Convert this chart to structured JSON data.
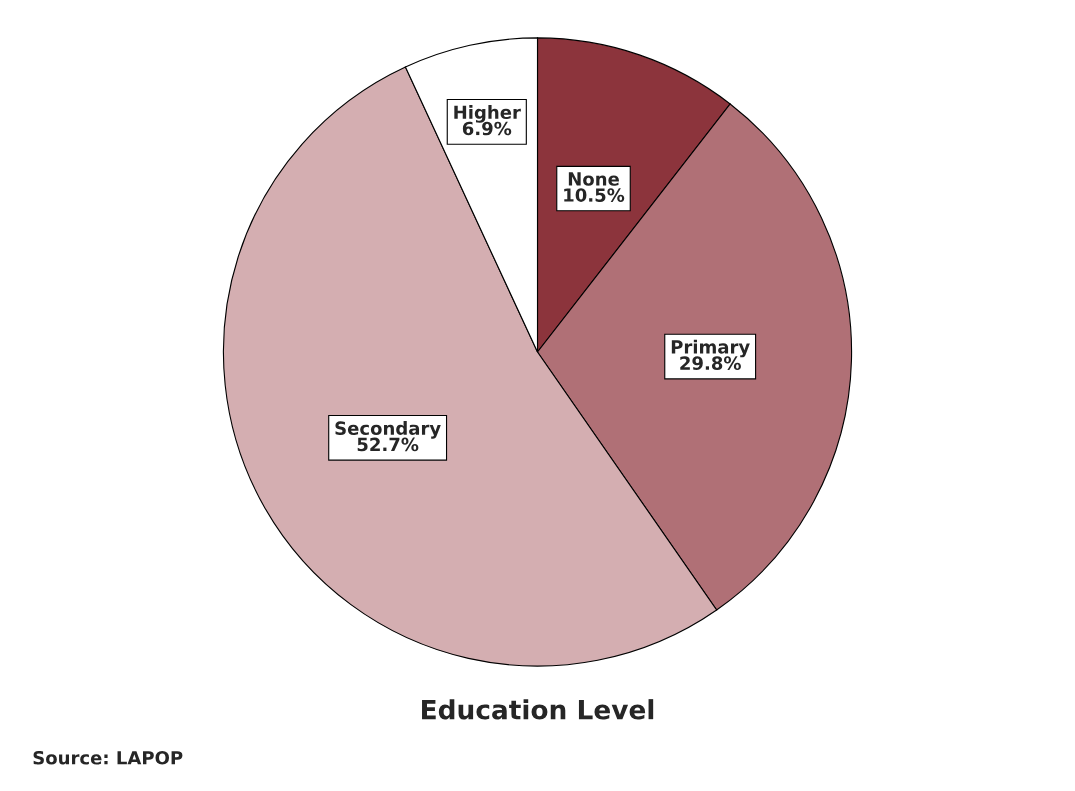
{
  "chart_data": {
    "type": "pie",
    "title": "Education Level",
    "categories": [
      "None",
      "Primary",
      "Secondary",
      "Higher"
    ],
    "values": [
      10.5,
      29.8,
      52.7,
      6.9
    ],
    "colors": [
      "#8c343c",
      "#b07076",
      "#d4aeb1",
      "#ffffff"
    ],
    "value_labels": [
      "10.5%",
      "29.8%",
      "52.7%",
      "6.9%"
    ],
    "annotations": [
      "Source: LAPOP"
    ]
  }
}
